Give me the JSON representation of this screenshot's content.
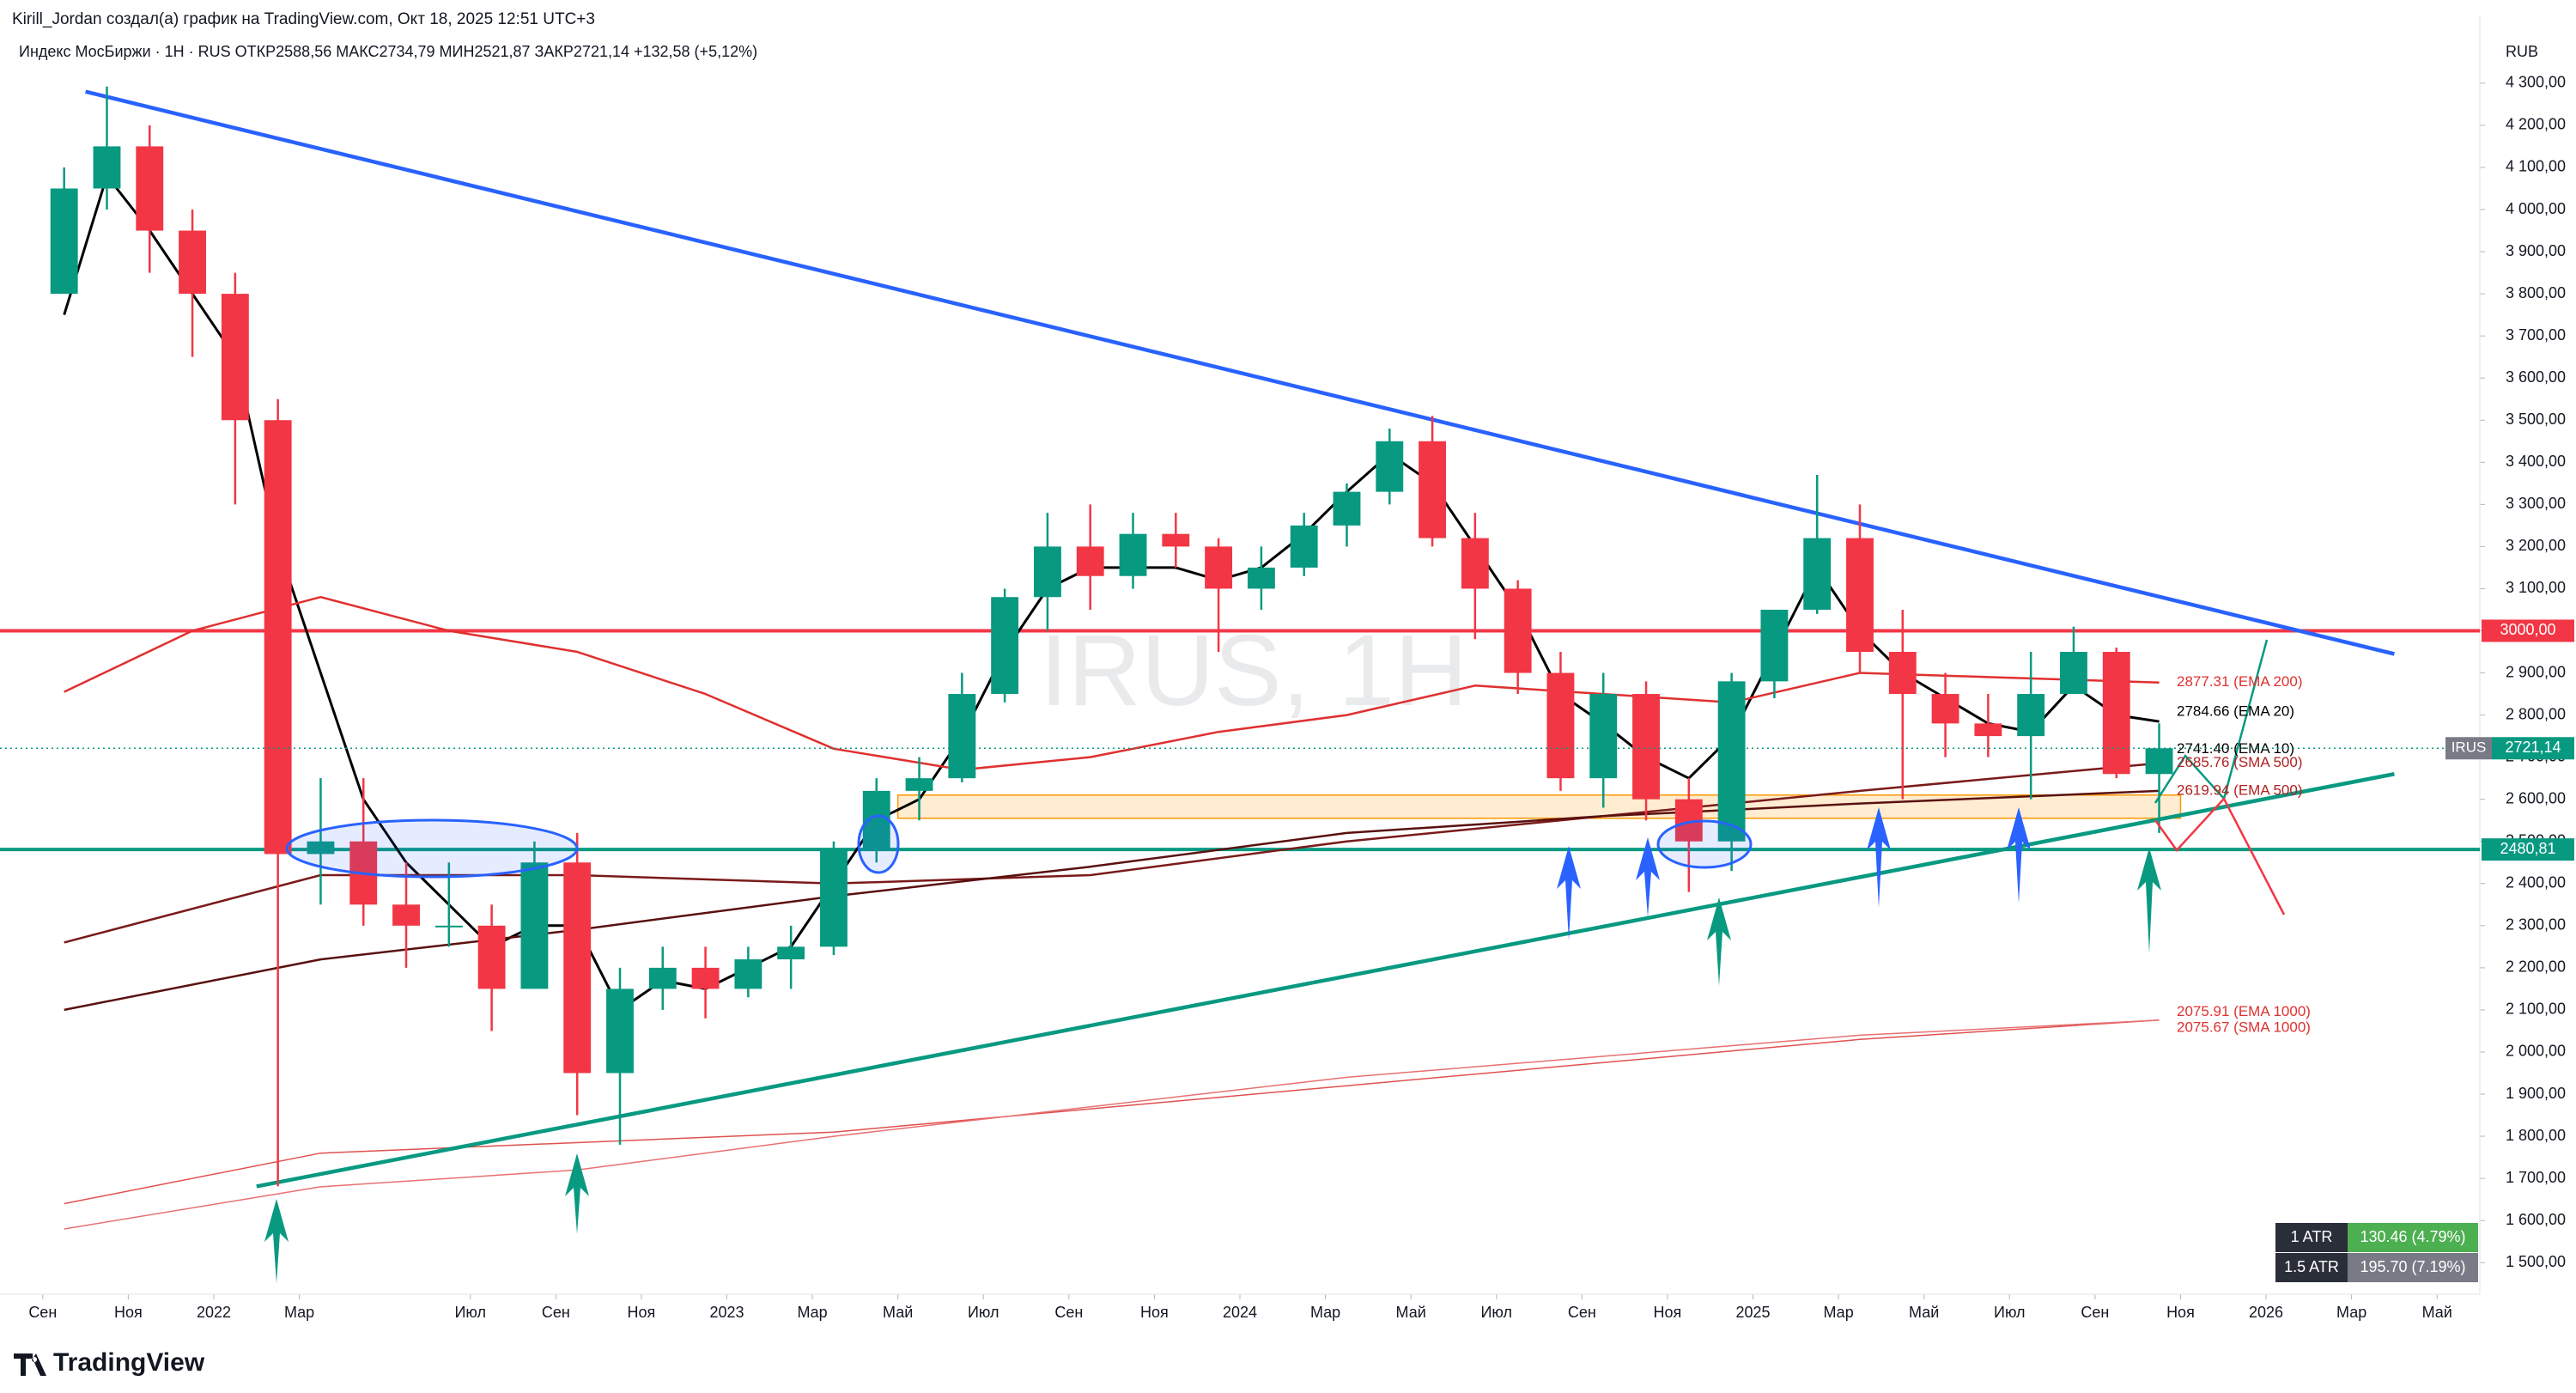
{
  "header": {
    "author_line": "Kirill_Jordan создал(а) график на TradingView.com, Окт 18, 2025 12:51 UTC+3",
    "legend_line": "Индекс МосБиржи · 1Н · RUS  ОТКР2588,56  МАКС2734,79  МИН2521,87  ЗАКР2721,14  +132,58 (+5,12%)",
    "currency": "RUB",
    "logo": "TradingView"
  },
  "chart_data": {
    "type": "candlestick",
    "watermark": "IRUS, 1H",
    "x": [
      "2021-09",
      "2021-10",
      "2021-11",
      "2021-12",
      "2022-01",
      "2022-02",
      "2022-03",
      "2022-04",
      "2022-05",
      "2022-06",
      "2022-07",
      "2022-08",
      "2022-09",
      "2022-10",
      "2022-11",
      "2022-12",
      "2023-01",
      "2023-02",
      "2023-03",
      "2023-04",
      "2023-05",
      "2023-06",
      "2023-07",
      "2023-08",
      "2023-09",
      "2023-10",
      "2023-11",
      "2023-12",
      "2024-01",
      "2024-02",
      "2024-03",
      "2024-04",
      "2024-05",
      "2024-06",
      "2024-07",
      "2024-08",
      "2024-09",
      "2024-10",
      "2024-11",
      "2024-12",
      "2025-01",
      "2025-02",
      "2025-03",
      "2025-04",
      "2025-05",
      "2025-06",
      "2025-07",
      "2025-08",
      "2025-09",
      "2025-10"
    ],
    "open": [
      3800,
      4050,
      4150,
      3950,
      3800,
      3500,
      2470,
      2500,
      2350,
      2300,
      2300,
      2150,
      2450,
      1950,
      2150,
      2200,
      2150,
      2220,
      2250,
      2480,
      2620,
      2650,
      2850,
      3080,
      3200,
      3130,
      3230,
      3200,
      3100,
      3150,
      3250,
      3330,
      3450,
      3220,
      3100,
      2900,
      2650,
      2850,
      2600,
      2500,
      2880,
      3050,
      3220,
      2950,
      2850,
      2780,
      2750,
      2850,
      2950,
      2660
    ],
    "high": [
      4100,
      4292,
      4200,
      4000,
      3850,
      3550,
      2650,
      2650,
      2450,
      2450,
      2350,
      2500,
      2520,
      2200,
      2250,
      2250,
      2250,
      2300,
      2500,
      2650,
      2700,
      2900,
      3100,
      3280,
      3300,
      3280,
      3280,
      3220,
      3200,
      3280,
      3350,
      3480,
      3510,
      3280,
      3120,
      2950,
      2900,
      2880,
      2650,
      2900,
      3050,
      3370,
      3300,
      3050,
      2900,
      2850,
      2950,
      3010,
      2960,
      2780
    ],
    "low": [
      3800,
      4000,
      3850,
      3650,
      3300,
      1681,
      2350,
      2300,
      2200,
      2250,
      2050,
      2150,
      1850,
      1780,
      2100,
      2080,
      2130,
      2150,
      2230,
      2450,
      2550,
      2640,
      2830,
      3000,
      3050,
      3100,
      3150,
      2950,
      3050,
      3130,
      3200,
      3300,
      3200,
      2980,
      2850,
      2620,
      2580,
      2550,
      2380,
      2430,
      2840,
      3040,
      2900,
      2600,
      2700,
      2700,
      2600,
      2850,
      2650,
      2520
    ],
    "close": [
      4050,
      4150,
      3950,
      3800,
      3500,
      2470,
      2500,
      2350,
      2300,
      2300,
      2150,
      2450,
      1950,
      2150,
      2200,
      2150,
      2220,
      2250,
      2480,
      2620,
      2650,
      2850,
      3080,
      3200,
      3130,
      3230,
      3200,
      3100,
      3150,
      3250,
      3330,
      3450,
      3220,
      3100,
      2900,
      2650,
      2850,
      2600,
      2500,
      2880,
      3050,
      3220,
      2950,
      2850,
      2780,
      2750,
      2850,
      2950,
      2660,
      2721.14
    ],
    "up_color": "#089981",
    "down_color": "#f23645",
    "xlim": [
      "2021-08",
      "2026-06"
    ],
    "xticks": [
      {
        "value": "2021-09",
        "label": "Сен"
      },
      {
        "value": "2021-11",
        "label": "Ноя"
      },
      {
        "value": "2022-01",
        "label": "2022"
      },
      {
        "value": "2022-03",
        "label": "Мар"
      },
      {
        "value": "2022-07",
        "label": "Июл"
      },
      {
        "value": "2022-09",
        "label": "Сен"
      },
      {
        "value": "2022-11",
        "label": "Ноя"
      },
      {
        "value": "2023-01",
        "label": "2023"
      },
      {
        "value": "2023-03",
        "label": "Мар"
      },
      {
        "value": "2023-05",
        "label": "Май"
      },
      {
        "value": "2023-07",
        "label": "Июл"
      },
      {
        "value": "2023-09",
        "label": "Сен"
      },
      {
        "value": "2023-11",
        "label": "Ноя"
      },
      {
        "value": "2024-01",
        "label": "2024"
      },
      {
        "value": "2024-03",
        "label": "Мар"
      },
      {
        "value": "2024-05",
        "label": "Май"
      },
      {
        "value": "2024-07",
        "label": "Июл"
      },
      {
        "value": "2024-09",
        "label": "Сен"
      },
      {
        "value": "2024-11",
        "label": "Ноя"
      },
      {
        "value": "2025-01",
        "label": "2025"
      },
      {
        "value": "2025-03",
        "label": "Мар"
      },
      {
        "value": "2025-05",
        "label": "Май"
      },
      {
        "value": "2025-07",
        "label": "Июл"
      },
      {
        "value": "2025-09",
        "label": "Сен"
      },
      {
        "value": "2025-11",
        "label": "Ноя"
      },
      {
        "value": "2026-01",
        "label": "2026"
      },
      {
        "value": "2026-03",
        "label": "Мар"
      },
      {
        "value": "2026-05",
        "label": "Май"
      }
    ],
    "ylim": [
      1425,
      4420
    ],
    "yticks": [
      {
        "value": 1500,
        "label": "1 500,00"
      },
      {
        "value": 1600,
        "label": "1 600,00"
      },
      {
        "value": 1700,
        "label": "1 700,00"
      },
      {
        "value": 1800,
        "label": "1 800,00"
      },
      {
        "value": 1900,
        "label": "1 900,00"
      },
      {
        "value": 2000,
        "label": "2 000,00"
      },
      {
        "value": 2100,
        "label": "2 100,00"
      },
      {
        "value": 2200,
        "label": "2 200,00"
      },
      {
        "value": 2300,
        "label": "2 300,00"
      },
      {
        "value": 2400,
        "label": "2 400,00"
      },
      {
        "value": 2500,
        "label": "2 500,00"
      },
      {
        "value": 2600,
        "label": "2 600,00"
      },
      {
        "value": 2700,
        "label": "2 700,00"
      },
      {
        "value": 2800,
        "label": "2 800,00"
      },
      {
        "value": 2900,
        "label": "2 900,00"
      },
      {
        "value": 3000,
        "label": "3 000,00"
      },
      {
        "value": 3100,
        "label": "3 100,00"
      },
      {
        "value": 3200,
        "label": "3 200,00"
      },
      {
        "value": 3300,
        "label": "3 300,00"
      },
      {
        "value": 3400,
        "label": "3 400,00"
      },
      {
        "value": 3500,
        "label": "3 500,00"
      },
      {
        "value": 3600,
        "label": "3 600,00"
      },
      {
        "value": 3700,
        "label": "3 700,00"
      },
      {
        "value": 3800,
        "label": "3 800,00"
      },
      {
        "value": 3900,
        "label": "3 900,00"
      },
      {
        "value": 4000,
        "label": "4 000,00"
      },
      {
        "value": 4100,
        "label": "4 100,00"
      },
      {
        "value": 4200,
        "label": "4 200,00"
      },
      {
        "value": 4300,
        "label": "4 300,00"
      }
    ],
    "series": [
      {
        "name": "EMA 20",
        "color": "#000000",
        "width": 3,
        "x": [
          "2021-09",
          "2021-10",
          "2021-11",
          "2021-12",
          "2022-01",
          "2022-02",
          "2022-03",
          "2022-04",
          "2022-05",
          "2022-06",
          "2022-07",
          "2022-08",
          "2022-09",
          "2022-10",
          "2022-11",
          "2022-12",
          "2023-01",
          "2023-02",
          "2023-03",
          "2023-04",
          "2023-05",
          "2023-06",
          "2023-07",
          "2023-08",
          "2023-09",
          "2023-10",
          "2023-11",
          "2023-12",
          "2024-01",
          "2024-02",
          "2024-03",
          "2024-04",
          "2024-05",
          "2024-06",
          "2024-07",
          "2024-08",
          "2024-09",
          "2024-10",
          "2024-11",
          "2024-12",
          "2025-01",
          "2025-02",
          "2025-03",
          "2025-04",
          "2025-05",
          "2025-06",
          "2025-07",
          "2025-08",
          "2025-09",
          "2025-10"
        ],
        "values": [
          3750,
          4080,
          3950,
          3800,
          3650,
          3200,
          2900,
          2600,
          2450,
          2350,
          2250,
          2300,
          2300,
          2100,
          2170,
          2150,
          2200,
          2250,
          2400,
          2550,
          2600,
          2750,
          2950,
          3100,
          3150,
          3150,
          3150,
          3120,
          3150,
          3230,
          3330,
          3420,
          3350,
          3200,
          3050,
          2850,
          2780,
          2700,
          2650,
          2750,
          2950,
          3150,
          3000,
          2900,
          2840,
          2780,
          2760,
          2870,
          2800,
          2784.66
        ]
      },
      {
        "name": "EMA 200",
        "color": "#e03030",
        "width": 2.5,
        "x": [
          "2021-09",
          "2021-12",
          "2022-03",
          "2022-06",
          "2022-09",
          "2022-12",
          "2023-03",
          "2023-06",
          "2023-09",
          "2023-12",
          "2024-03",
          "2024-06",
          "2024-09",
          "2024-12",
          "2025-03",
          "2025-06",
          "2025-10"
        ],
        "values": [
          2855,
          3000,
          3080,
          3000,
          2950,
          2850,
          2720,
          2670,
          2700,
          2760,
          2800,
          2870,
          2850,
          2830,
          2900,
          2890,
          2877.31
        ]
      },
      {
        "name": "SMA 500",
        "color": "#7a1a1a",
        "width": 2.5,
        "x": [
          "2021-09",
          "2022-03",
          "2022-09",
          "2023-03",
          "2023-09",
          "2024-03",
          "2024-09",
          "2025-03",
          "2025-10"
        ],
        "values": [
          2260,
          2420,
          2420,
          2400,
          2420,
          2500,
          2560,
          2620,
          2685.76
        ]
      },
      {
        "name": "EMA 500",
        "color": "#5a1010",
        "width": 2.5,
        "x": [
          "2021-09",
          "2022-03",
          "2022-09",
          "2023-03",
          "2023-09",
          "2024-03",
          "2024-09",
          "2025-03",
          "2025-10"
        ],
        "values": [
          2100,
          2220,
          2290,
          2370,
          2440,
          2520,
          2560,
          2590,
          2619.94
        ]
      },
      {
        "name": "EMA 1000",
        "color": "#e05050",
        "width": 1.5,
        "x": [
          "2021-09",
          "2022-03",
          "2023-03",
          "2024-03",
          "2025-03",
          "2025-10"
        ],
        "values": [
          1640,
          1760,
          1810,
          1920,
          2030,
          2075.91
        ]
      },
      {
        "name": "SMA 1000",
        "color": "#e87070",
        "width": 1.5,
        "x": [
          "2021-09",
          "2022-03",
          "2022-09",
          "2023-03",
          "2024-03",
          "2025-03",
          "2025-10"
        ],
        "values": [
          1580,
          1680,
          1720,
          1800,
          1940,
          2040,
          2075.67
        ]
      }
    ],
    "trendlines": [
      {
        "color": "#2962ff",
        "x": [
          "2021-10",
          "2026-04"
        ],
        "values": [
          4280,
          2945
        ]
      },
      {
        "color": "#089981",
        "x": [
          "2022-02",
          "2026-04"
        ],
        "values": [
          1681,
          2660
        ]
      }
    ],
    "zones": [
      {
        "color": "#ff9800",
        "x": [
          "2023-05",
          "2025-11"
        ],
        "values": [
          2555,
          2610
        ]
      }
    ],
    "levels": [
      {
        "value": 3000,
        "label": "3000,00",
        "color": "#f23645"
      },
      {
        "value": 2480.81,
        "label": "2480,81",
        "color": "#089981"
      }
    ],
    "last_price": {
      "name": "IRUS",
      "value": 2721.14,
      "label": "2721,14",
      "color": "#089981"
    },
    "annotations": [
      {
        "text": "2877.31 (EMA 200)",
        "value": 2877.31,
        "color": "#e03030"
      },
      {
        "text": "2784.66 (EMA 20)",
        "value": 2784.66,
        "color": "#000000"
      },
      {
        "text": "2741.40 (EMA 10)",
        "value": 2741.4,
        "color": "#000000"
      },
      {
        "text": "2685.76 (SMA 500)",
        "value": 2685.76,
        "color": "#b22222"
      },
      {
        "text": "2619.94 (EMA 500)",
        "value": 2619.94,
        "color": "#b22222"
      },
      {
        "text": "2075.91 (EMA 1000)",
        "value": 2075.91,
        "color": "#e03030"
      },
      {
        "text": "2075.67 (SMA 1000)",
        "value": 2075.67,
        "color": "#e03030"
      }
    ],
    "atr_table": [
      [
        "1 ATR",
        "130.46 (4.79%)"
      ],
      [
        "1.5 ATR",
        "195.70 (7.19%)"
      ]
    ]
  }
}
